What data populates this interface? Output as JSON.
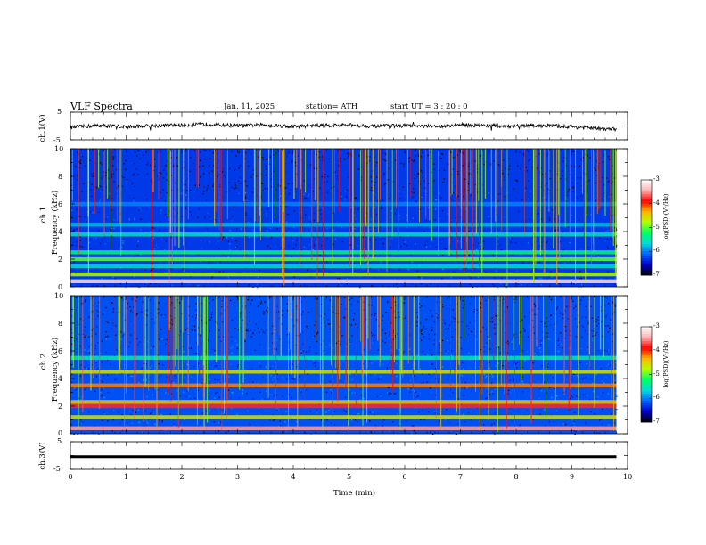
{
  "header": {
    "title": "VLF  Spectra",
    "date": "Jan.  11,  2025",
    "station": "station= ATH",
    "start_ut": "start  UT  =   3  : 20 : 0"
  },
  "colors": {
    "trace": "#000000",
    "spectrum_background": "#0a1b6e",
    "colormap": [
      "#000000",
      "#0000c8",
      "#0064ff",
      "#00dcdc",
      "#00ff64",
      "#b4ff00",
      "#ffb400",
      "#ff0000",
      "#ffb4b4",
      "#ffffff"
    ]
  },
  "chart_data": [
    {
      "type": "line",
      "name": "channel-1-waveform",
      "ylabel": "ch.1(V)",
      "ylim": [
        -5,
        5
      ],
      "yticks": [
        "5",
        "-5"
      ],
      "xlim": [
        0,
        10
      ],
      "x": [
        0,
        0.5,
        1,
        1.5,
        2,
        2.5,
        3,
        3.5,
        4,
        4.5,
        5,
        5.5,
        6,
        6.5,
        7,
        7.5,
        8,
        8.5,
        9,
        9.5,
        9.8
      ],
      "y": [
        -0.5,
        0.2,
        -0.3,
        0.1,
        0.3,
        0.6,
        0.1,
        0.4,
        -0.2,
        0.2,
        0.3,
        -0.1,
        0.1,
        -0.2,
        0.4,
        0.1,
        -0.1,
        0.2,
        -0.3,
        -1.0,
        -1.2
      ]
    },
    {
      "type": "heatmap",
      "name": "channel-1-spectrogram",
      "ylabel": "ch.1\nFrequency  (kHz)",
      "ylim": [
        0,
        10
      ],
      "yticks": [
        "0",
        "2",
        "4",
        "6",
        "8",
        "10"
      ],
      "xlim": [
        0,
        10
      ],
      "colorbar": {
        "label": "log(PSD)(V²/Hz)",
        "range": [
          -7,
          -3
        ],
        "ticks": [
          "-3",
          "-4",
          "-5",
          "-6",
          "-7"
        ]
      },
      "bands": [
        {
          "freq_khz": 0.4,
          "log_psd": -3.2
        },
        {
          "freq_khz": 0.9,
          "log_psd": -4.8
        },
        {
          "freq_khz": 1.5,
          "log_psd": -5.6
        },
        {
          "freq_khz": 2.0,
          "log_psd": -5.0
        },
        {
          "freq_khz": 2.5,
          "log_psd": -5.3
        },
        {
          "freq_khz": 3.8,
          "log_psd": -5.6
        },
        {
          "freq_khz": 4.5,
          "log_psd": -5.8
        },
        {
          "freq_khz": 6.0,
          "log_psd": -6.0
        }
      ],
      "background_log_psd": -6.3
    },
    {
      "type": "heatmap",
      "name": "channel-2-spectrogram",
      "ylabel": "ch.2\nFrequency  (kHz)",
      "ylim": [
        0,
        10
      ],
      "yticks": [
        "0",
        "2",
        "4",
        "6",
        "8",
        "10"
      ],
      "xlim": [
        0,
        10
      ],
      "colorbar": {
        "label": "log(PSD)(V²/Hz)",
        "range": [
          -7,
          -3
        ],
        "ticks": [
          "-3",
          "-4",
          "-5",
          "-6",
          "-7"
        ]
      },
      "bands": [
        {
          "freq_khz": 0.4,
          "log_psd": -3.5
        },
        {
          "freq_khz": 1.2,
          "log_psd": -4.6
        },
        {
          "freq_khz": 2.0,
          "log_psd": -3.8
        },
        {
          "freq_khz": 2.3,
          "log_psd": -4.4
        },
        {
          "freq_khz": 3.5,
          "log_psd": -4.2
        },
        {
          "freq_khz": 4.5,
          "log_psd": -4.6
        },
        {
          "freq_khz": 5.5,
          "log_psd": -5.5
        }
      ],
      "background_log_psd": -6.2
    },
    {
      "type": "line",
      "name": "channel-3-waveform",
      "ylabel": "ch.3(V)",
      "ylim": [
        -5,
        5
      ],
      "yticks": [
        "5",
        "-5"
      ],
      "xlim": [
        0,
        10
      ],
      "x": [
        0,
        9.8
      ],
      "y": [
        -0.4,
        -0.4
      ]
    }
  ],
  "xaxis": {
    "label": "Time  (min)",
    "ticks": [
      "0",
      "1",
      "2",
      "3",
      "4",
      "5",
      "6",
      "7",
      "8",
      "9",
      "10"
    ],
    "range": [
      0,
      10
    ]
  }
}
